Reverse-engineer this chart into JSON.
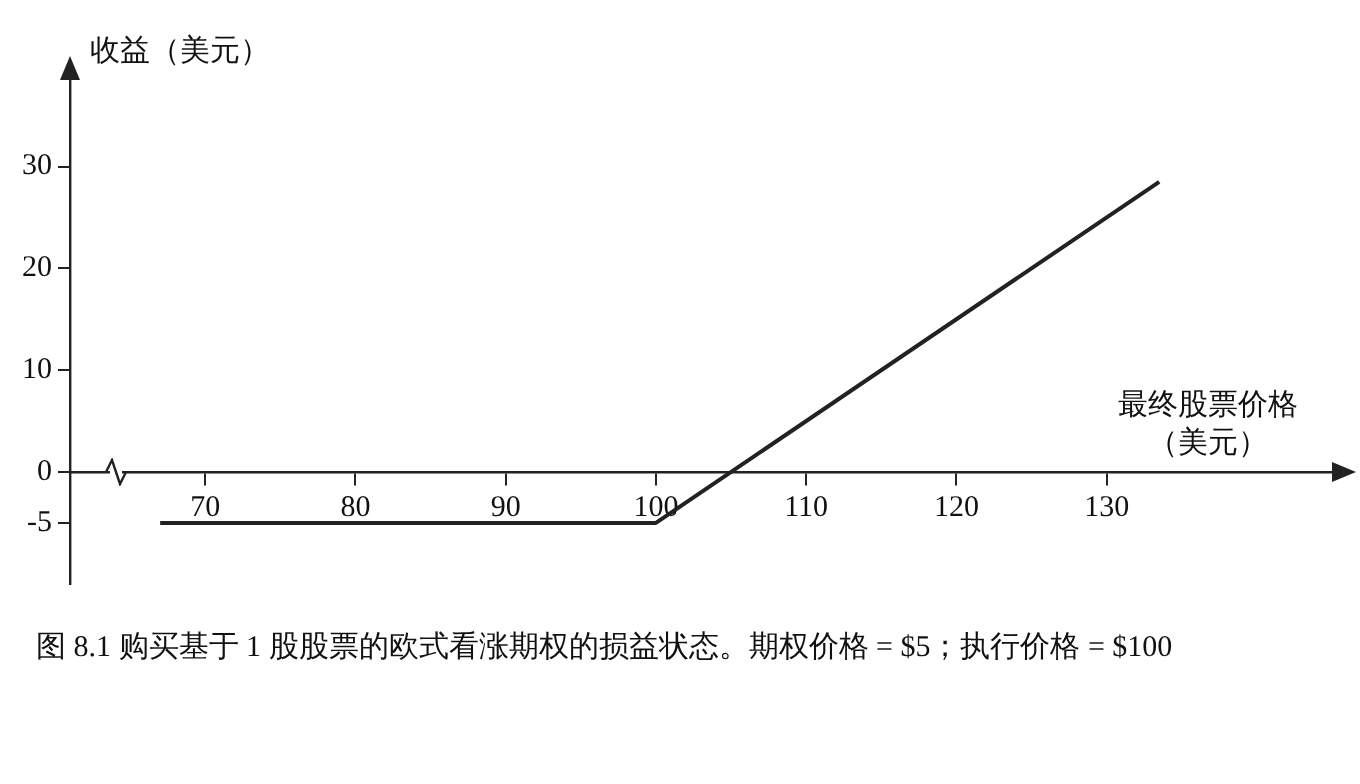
{
  "chart_data": {
    "type": "line",
    "xlabel": "最终股票价格（美元）",
    "ylabel": "收益（美元）",
    "x": [
      67,
      100,
      133.5
    ],
    "series": [
      {
        "color": "#222222",
        "values": [
          -5,
          -5,
          28.5
        ]
      }
    ],
    "xlim": [
      61,
      145
    ],
    "xticks": [
      70,
      80,
      90,
      100,
      110,
      120,
      130
    ],
    "ylim": [
      -11,
      38.5
    ],
    "yticks": [
      -5,
      0,
      10,
      20,
      30
    ],
    "grid": false,
    "legend": false,
    "marker": "none",
    "line_style": "solid",
    "annotations": [
      "图 8.1  购买基于 1 股股票的欧式看涨期权的损益状态。期权价格 = $5；执行价格 = $100"
    ]
  }
}
